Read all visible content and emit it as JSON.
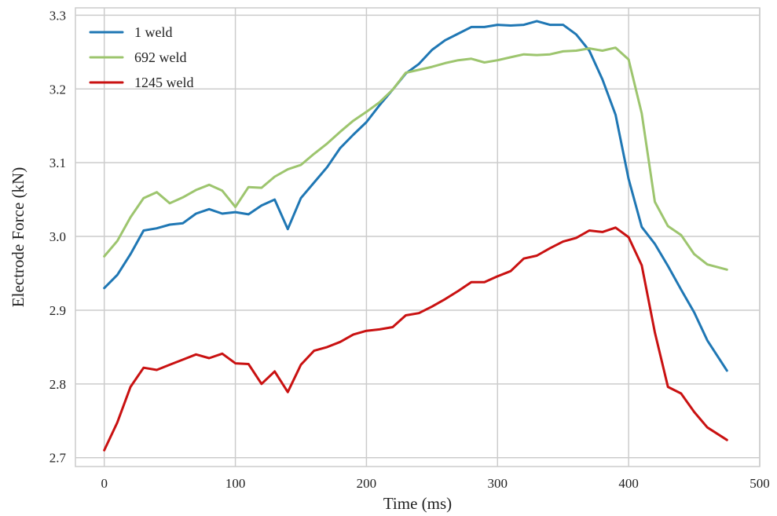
{
  "chart_data": {
    "type": "line",
    "title": "",
    "xlabel": "Time (ms)",
    "ylabel": "Electrode Force (kN)",
    "xlim": [
      -22,
      500
    ],
    "ylim": [
      2.688,
      3.31
    ],
    "xticks": [
      0,
      100,
      200,
      300,
      400,
      500
    ],
    "yticks": [
      2.7,
      2.8,
      2.9,
      3.0,
      3.1,
      3.2,
      3.3
    ],
    "grid": true,
    "legend_position": "top-left",
    "series": [
      {
        "name": "1 weld",
        "color": "#1f77b4",
        "x": [
          0,
          10,
          20,
          30,
          40,
          50,
          60,
          70,
          80,
          90,
          100,
          110,
          120,
          130,
          140,
          150,
          160,
          170,
          180,
          190,
          200,
          210,
          220,
          230,
          240,
          250,
          260,
          270,
          280,
          290,
          300,
          310,
          320,
          330,
          340,
          350,
          360,
          370,
          380,
          390,
          400,
          410,
          420,
          430,
          440,
          450,
          460,
          475
        ],
        "y": [
          2.93,
          2.948,
          2.976,
          3.008,
          3.011,
          3.016,
          3.018,
          3.031,
          3.037,
          3.031,
          3.033,
          3.03,
          3.042,
          3.05,
          3.01,
          3.052,
          3.073,
          3.094,
          3.12,
          3.138,
          3.155,
          3.178,
          3.199,
          3.221,
          3.234,
          3.253,
          3.266,
          3.275,
          3.284,
          3.284,
          3.287,
          3.286,
          3.287,
          3.292,
          3.287,
          3.287,
          3.274,
          3.252,
          3.213,
          3.165,
          3.078,
          3.013,
          2.99,
          2.96,
          2.928,
          2.897,
          2.859,
          2.818
        ]
      },
      {
        "name": "692 weld",
        "color": "#9dc56e",
        "x": [
          0,
          10,
          20,
          30,
          40,
          50,
          60,
          70,
          80,
          90,
          100,
          110,
          120,
          130,
          140,
          150,
          160,
          170,
          180,
          190,
          200,
          210,
          220,
          230,
          240,
          250,
          260,
          270,
          280,
          290,
          300,
          310,
          320,
          330,
          340,
          350,
          360,
          370,
          380,
          390,
          400,
          410,
          420,
          430,
          440,
          450,
          460,
          475
        ],
        "y": [
          2.973,
          2.994,
          3.026,
          3.052,
          3.06,
          3.045,
          3.053,
          3.063,
          3.07,
          3.062,
          3.04,
          3.067,
          3.066,
          3.081,
          3.091,
          3.097,
          3.112,
          3.126,
          3.142,
          3.157,
          3.169,
          3.182,
          3.199,
          3.222,
          3.226,
          3.23,
          3.235,
          3.239,
          3.241,
          3.236,
          3.239,
          3.243,
          3.247,
          3.246,
          3.247,
          3.251,
          3.252,
          3.255,
          3.252,
          3.256,
          3.24,
          3.167,
          3.047,
          3.014,
          3.002,
          2.976,
          2.962,
          2.955
        ]
      },
      {
        "name": "1245 weld",
        "color": "#c91111",
        "x": [
          0,
          10,
          20,
          30,
          40,
          50,
          60,
          70,
          80,
          90,
          100,
          110,
          120,
          130,
          140,
          150,
          160,
          170,
          180,
          190,
          200,
          210,
          220,
          230,
          240,
          250,
          260,
          270,
          280,
          290,
          300,
          310,
          320,
          330,
          340,
          350,
          360,
          370,
          380,
          390,
          400,
          410,
          420,
          430,
          440,
          450,
          460,
          475
        ],
        "y": [
          2.71,
          2.748,
          2.796,
          2.822,
          2.819,
          2.826,
          2.833,
          2.84,
          2.835,
          2.841,
          2.828,
          2.827,
          2.8,
          2.817,
          2.789,
          2.826,
          2.845,
          2.85,
          2.857,
          2.867,
          2.872,
          2.874,
          2.877,
          2.893,
          2.896,
          2.905,
          2.915,
          2.926,
          2.938,
          2.938,
          2.946,
          2.953,
          2.97,
          2.974,
          2.984,
          2.993,
          2.998,
          3.008,
          3.006,
          3.012,
          2.999,
          2.961,
          2.87,
          2.796,
          2.787,
          2.762,
          2.741,
          2.724
        ]
      }
    ]
  }
}
